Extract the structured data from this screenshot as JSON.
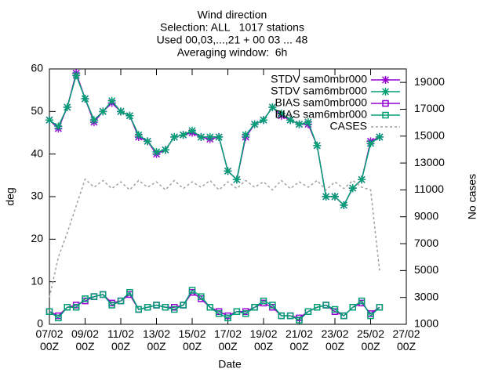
{
  "chart_data": {
    "type": "line",
    "title": [
      "Wind direction",
      "Selection: ALL   1017 stations",
      "Used 00,03,...,21 + 00 03 ... 48",
      "Averaging window:  6h"
    ],
    "xlabel": "Date",
    "ylabel": "deg",
    "y2label": "No cases",
    "x": [
      "07/02 00Z",
      "07/02 12Z",
      "08/02 00Z",
      "08/02 12Z",
      "09/02 00Z",
      "09/02 12Z",
      "10/02 00Z",
      "10/02 12Z",
      "11/02 00Z",
      "11/02 12Z",
      "12/02 00Z",
      "12/02 12Z",
      "13/02 00Z",
      "13/02 12Z",
      "14/02 00Z",
      "14/02 12Z",
      "15/02 00Z",
      "15/02 12Z",
      "16/02 00Z",
      "16/02 12Z",
      "17/02 00Z",
      "17/02 12Z",
      "18/02 00Z",
      "18/02 12Z",
      "19/02 00Z",
      "19/02 12Z",
      "20/02 00Z",
      "20/02 12Z",
      "21/02 00Z",
      "21/02 12Z",
      "22/02 00Z",
      "22/02 12Z",
      "23/02 00Z",
      "23/02 12Z",
      "24/02 00Z",
      "24/02 12Z",
      "25/02 00Z",
      "25/02 12Z"
    ],
    "xlim": [
      "07/02 00Z",
      "27/02 00Z"
    ],
    "xticks": [
      "07/02\n00Z",
      "09/02\n00Z",
      "11/02\n00Z",
      "13/02\n00Z",
      "15/02\n00Z",
      "17/02\n00Z",
      "19/02\n00Z",
      "21/02\n00Z",
      "23/02\n00Z",
      "25/02\n00Z",
      "27/02\n00Z"
    ],
    "ylim": [
      0,
      60
    ],
    "yticks": [
      0,
      10,
      20,
      30,
      40,
      50,
      60
    ],
    "y2lim": [
      1000,
      20000
    ],
    "y2ticks": [
      1000,
      3000,
      5000,
      7000,
      9000,
      11000,
      13000,
      15000,
      17000,
      19000
    ],
    "grid": false,
    "legend": "top-right",
    "series": [
      {
        "name": "STDV sam0mbr000",
        "color": "#9400d3",
        "marker": "star",
        "values": [
          48,
          46,
          51,
          59,
          53,
          47.5,
          50,
          52,
          50,
          49,
          44,
          43,
          40,
          41,
          44,
          44.5,
          45,
          44,
          43.5,
          44,
          36,
          34,
          44,
          47,
          48,
          51,
          49,
          48,
          47,
          47,
          42,
          30,
          30,
          28,
          32,
          34,
          43,
          44
        ]
      },
      {
        "name": "STDV sam6mbr000",
        "color": "#009e73",
        "marker": "star",
        "values": [
          48,
          46.5,
          51,
          58.5,
          53,
          48,
          50,
          52.5,
          50,
          49,
          44.5,
          43,
          40.5,
          41,
          44,
          44.5,
          45.5,
          44,
          44,
          44,
          36,
          34,
          44.5,
          47,
          48,
          51,
          49.5,
          48,
          47,
          47.5,
          42,
          30,
          30,
          28,
          32,
          34,
          42.5,
          44
        ]
      },
      {
        "name": "BIAS sam0mbr000",
        "color": "#9400d3",
        "marker": "square",
        "values": [
          3,
          2,
          4,
          4.5,
          5.5,
          6.5,
          7,
          5,
          5.5,
          7,
          3.5,
          4,
          4.5,
          4,
          4,
          4.5,
          7.5,
          6,
          4,
          3,
          2,
          3,
          3,
          4,
          5,
          4,
          2,
          2,
          1.5,
          3,
          4,
          4.5,
          3,
          2,
          4,
          5,
          2.5,
          4
        ]
      },
      {
        "name": "BIAS sam6mbr000",
        "color": "#009e73",
        "marker": "square",
        "values": [
          3,
          1.5,
          4,
          4,
          6,
          6.5,
          7,
          4.5,
          5.5,
          7.5,
          3.5,
          4,
          4.5,
          4,
          3.5,
          4.5,
          8,
          6.5,
          4,
          2.5,
          1.5,
          3,
          2.5,
          4,
          5.5,
          4.5,
          2,
          2,
          1,
          3,
          4,
          4.5,
          3.5,
          2,
          4,
          5.5,
          2,
          4
        ]
      },
      {
        "name": "CASES",
        "color": "#a0a0a0",
        "axis": "y2",
        "dash": true,
        "values": [
          3000,
          6000,
          7800,
          9800,
          11800,
          11200,
          11700,
          11100,
          11600,
          11000,
          11700,
          11200,
          11600,
          11000,
          11700,
          11100,
          11600,
          11200,
          11700,
          11000,
          11600,
          11100,
          11700,
          11200,
          11600,
          11000,
          11700,
          11100,
          11600,
          11200,
          11700,
          11000,
          11600,
          11100,
          11700,
          11200,
          11000,
          5000
        ]
      }
    ]
  }
}
